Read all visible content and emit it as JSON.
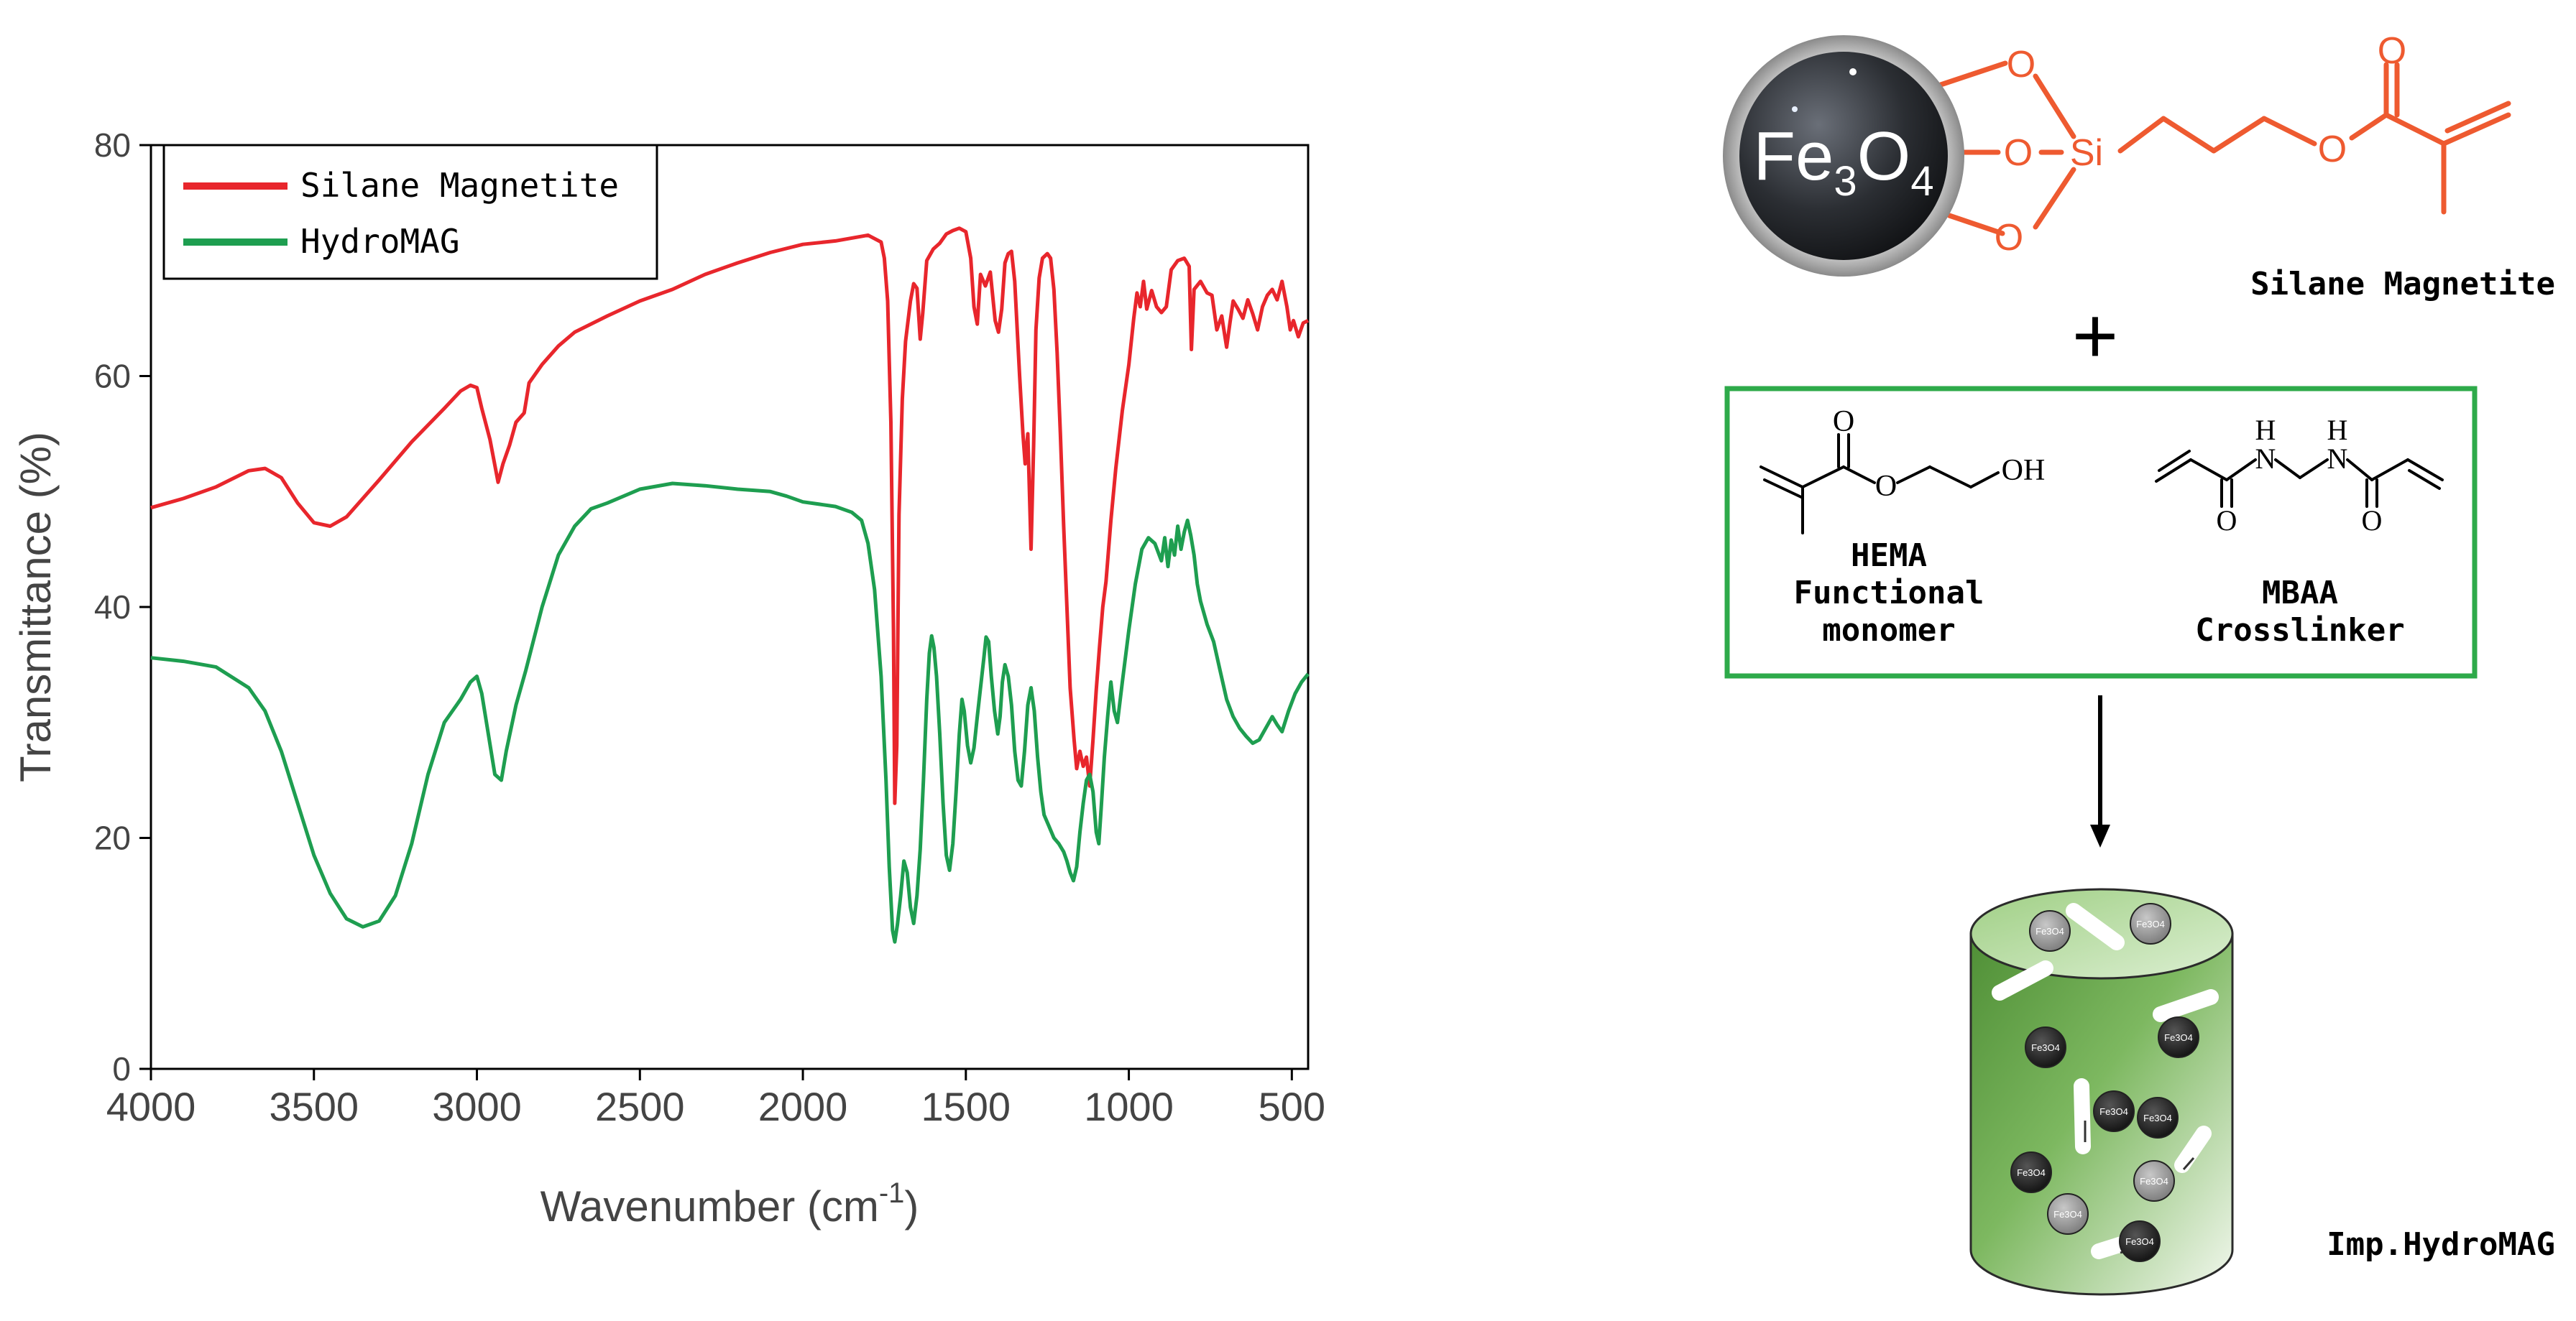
{
  "chart_data": {
    "type": "line",
    "title": "",
    "xlabel_main": "Wavenumber (cm",
    "xlabel_sup": "-1",
    "xlabel_end": ")",
    "ylabel": "Transmittance (%)",
    "xlim": [
      4000,
      450
    ],
    "ylim": [
      0,
      80
    ],
    "x_ticks": [
      "4000",
      "3500",
      "3000",
      "2500",
      "2000",
      "1500",
      "1000",
      "500"
    ],
    "y_ticks": [
      "0",
      "20",
      "40",
      "60",
      "80"
    ],
    "legend_position": "top-left",
    "grid": false,
    "series": [
      {
        "name": "Silane Magnetite",
        "color": "#e8262c",
        "points": [
          [
            4000,
            48.6
          ],
          [
            3900,
            49.4
          ],
          [
            3800,
            50.4
          ],
          [
            3700,
            51.8
          ],
          [
            3650,
            52.0
          ],
          [
            3600,
            51.2
          ],
          [
            3550,
            49.0
          ],
          [
            3500,
            47.3
          ],
          [
            3450,
            47.0
          ],
          [
            3400,
            47.8
          ],
          [
            3300,
            51.0
          ],
          [
            3200,
            54.3
          ],
          [
            3100,
            57.2
          ],
          [
            3050,
            58.7
          ],
          [
            3020,
            59.2
          ],
          [
            3000,
            59.0
          ],
          [
            2985,
            57.2
          ],
          [
            2960,
            54.5
          ],
          [
            2935,
            50.8
          ],
          [
            2920,
            52.4
          ],
          [
            2900,
            54.0
          ],
          [
            2880,
            56.0
          ],
          [
            2855,
            56.8
          ],
          [
            2840,
            59.4
          ],
          [
            2800,
            61.0
          ],
          [
            2750,
            62.6
          ],
          [
            2700,
            63.8
          ],
          [
            2600,
            65.2
          ],
          [
            2500,
            66.5
          ],
          [
            2400,
            67.5
          ],
          [
            2300,
            68.8
          ],
          [
            2200,
            69.8
          ],
          [
            2100,
            70.7
          ],
          [
            2000,
            71.4
          ],
          [
            1900,
            71.7
          ],
          [
            1800,
            72.2
          ],
          [
            1760,
            71.6
          ],
          [
            1750,
            70.2
          ],
          [
            1740,
            66.5
          ],
          [
            1730,
            56.0
          ],
          [
            1722,
            38.0
          ],
          [
            1718,
            23.0
          ],
          [
            1712,
            28.0
          ],
          [
            1705,
            48.0
          ],
          [
            1695,
            58.0
          ],
          [
            1685,
            63.0
          ],
          [
            1670,
            66.5
          ],
          [
            1660,
            68.0
          ],
          [
            1650,
            67.6
          ],
          [
            1640,
            63.2
          ],
          [
            1632,
            65.5
          ],
          [
            1620,
            70.0
          ],
          [
            1600,
            71.0
          ],
          [
            1580,
            71.5
          ],
          [
            1560,
            72.3
          ],
          [
            1540,
            72.6
          ],
          [
            1520,
            72.8
          ],
          [
            1500,
            72.5
          ],
          [
            1485,
            70.2
          ],
          [
            1475,
            66.0
          ],
          [
            1465,
            64.5
          ],
          [
            1455,
            68.8
          ],
          [
            1440,
            67.8
          ],
          [
            1425,
            69.0
          ],
          [
            1410,
            64.8
          ],
          [
            1400,
            63.8
          ],
          [
            1390,
            65.8
          ],
          [
            1380,
            69.8
          ],
          [
            1370,
            70.6
          ],
          [
            1360,
            70.8
          ],
          [
            1350,
            68.2
          ],
          [
            1335,
            60.0
          ],
          [
            1325,
            55.0
          ],
          [
            1318,
            52.4
          ],
          [
            1310,
            55.0
          ],
          [
            1300,
            45.0
          ],
          [
            1292,
            54.0
          ],
          [
            1285,
            64.0
          ],
          [
            1275,
            68.5
          ],
          [
            1265,
            70.2
          ],
          [
            1250,
            70.6
          ],
          [
            1240,
            70.2
          ],
          [
            1230,
            67.5
          ],
          [
            1220,
            62.0
          ],
          [
            1210,
            55.0
          ],
          [
            1200,
            47.0
          ],
          [
            1190,
            40.0
          ],
          [
            1180,
            33.0
          ],
          [
            1168,
            28.5
          ],
          [
            1160,
            26.0
          ],
          [
            1150,
            27.5
          ],
          [
            1140,
            26.2
          ],
          [
            1130,
            27.0
          ],
          [
            1120,
            24.5
          ],
          [
            1110,
            28.5
          ],
          [
            1100,
            32.8
          ],
          [
            1090,
            36.5
          ],
          [
            1080,
            40.0
          ],
          [
            1070,
            42.2
          ],
          [
            1055,
            47.5
          ],
          [
            1040,
            52.0
          ],
          [
            1020,
            57.0
          ],
          [
            1000,
            61.0
          ],
          [
            985,
            65.0
          ],
          [
            975,
            67.2
          ],
          [
            965,
            66.0
          ],
          [
            955,
            68.2
          ],
          [
            945,
            65.8
          ],
          [
            930,
            67.4
          ],
          [
            915,
            66.0
          ],
          [
            900,
            65.5
          ],
          [
            885,
            66.0
          ],
          [
            870,
            69.2
          ],
          [
            850,
            70.0
          ],
          [
            830,
            70.2
          ],
          [
            815,
            69.5
          ],
          [
            808,
            62.3
          ],
          [
            800,
            67.5
          ],
          [
            780,
            68.2
          ],
          [
            760,
            67.2
          ],
          [
            745,
            67.0
          ],
          [
            730,
            64.0
          ],
          [
            715,
            65.2
          ],
          [
            700,
            62.5
          ],
          [
            690,
            64.6
          ],
          [
            680,
            66.5
          ],
          [
            665,
            65.8
          ],
          [
            650,
            65.0
          ],
          [
            635,
            66.6
          ],
          [
            620,
            65.4
          ],
          [
            605,
            64.0
          ],
          [
            590,
            66.0
          ],
          [
            575,
            67.0
          ],
          [
            560,
            67.5
          ],
          [
            545,
            66.6
          ],
          [
            530,
            68.2
          ],
          [
            515,
            66.0
          ],
          [
            505,
            64.0
          ],
          [
            495,
            64.8
          ],
          [
            480,
            63.4
          ],
          [
            465,
            64.6
          ],
          [
            450,
            64.8
          ]
        ]
      },
      {
        "name": "HydroMAG",
        "color": "#1e9e50",
        "points": [
          [
            4000,
            35.6
          ],
          [
            3900,
            35.3
          ],
          [
            3800,
            34.8
          ],
          [
            3700,
            33.0
          ],
          [
            3650,
            31.0
          ],
          [
            3600,
            27.5
          ],
          [
            3550,
            23.0
          ],
          [
            3500,
            18.5
          ],
          [
            3450,
            15.2
          ],
          [
            3400,
            13.0
          ],
          [
            3350,
            12.3
          ],
          [
            3300,
            12.8
          ],
          [
            3250,
            15.0
          ],
          [
            3200,
            19.5
          ],
          [
            3150,
            25.5
          ],
          [
            3100,
            30.0
          ],
          [
            3050,
            32.0
          ],
          [
            3020,
            33.5
          ],
          [
            3000,
            34.0
          ],
          [
            2985,
            32.5
          ],
          [
            2965,
            29.0
          ],
          [
            2945,
            25.5
          ],
          [
            2925,
            25.0
          ],
          [
            2910,
            27.5
          ],
          [
            2880,
            31.5
          ],
          [
            2850,
            34.5
          ],
          [
            2800,
            40.0
          ],
          [
            2750,
            44.5
          ],
          [
            2700,
            47.0
          ],
          [
            2650,
            48.5
          ],
          [
            2600,
            49.0
          ],
          [
            2500,
            50.2
          ],
          [
            2400,
            50.7
          ],
          [
            2300,
            50.5
          ],
          [
            2200,
            50.2
          ],
          [
            2100,
            50.0
          ],
          [
            2050,
            49.6
          ],
          [
            2000,
            49.1
          ],
          [
            1950,
            48.9
          ],
          [
            1900,
            48.7
          ],
          [
            1850,
            48.2
          ],
          [
            1820,
            47.5
          ],
          [
            1800,
            45.5
          ],
          [
            1780,
            41.5
          ],
          [
            1760,
            34.0
          ],
          [
            1745,
            25.0
          ],
          [
            1735,
            17.5
          ],
          [
            1725,
            12.0
          ],
          [
            1718,
            11.0
          ],
          [
            1710,
            12.5
          ],
          [
            1700,
            15.0
          ],
          [
            1690,
            18.0
          ],
          [
            1680,
            17.0
          ],
          [
            1670,
            14.0
          ],
          [
            1660,
            12.6
          ],
          [
            1650,
            15.0
          ],
          [
            1640,
            19.0
          ],
          [
            1630,
            25.0
          ],
          [
            1620,
            32.0
          ],
          [
            1612,
            36.0
          ],
          [
            1605,
            37.5
          ],
          [
            1598,
            36.5
          ],
          [
            1590,
            34.0
          ],
          [
            1580,
            29.0
          ],
          [
            1570,
            23.0
          ],
          [
            1560,
            18.5
          ],
          [
            1550,
            17.2
          ],
          [
            1540,
            19.5
          ],
          [
            1530,
            24.0
          ],
          [
            1520,
            29.0
          ],
          [
            1512,
            32.0
          ],
          [
            1505,
            31.0
          ],
          [
            1495,
            28.0
          ],
          [
            1485,
            26.5
          ],
          [
            1475,
            27.8
          ],
          [
            1465,
            30.5
          ],
          [
            1455,
            33.0
          ],
          [
            1445,
            35.5
          ],
          [
            1438,
            37.4
          ],
          [
            1430,
            37.0
          ],
          [
            1422,
            34.0
          ],
          [
            1412,
            31.0
          ],
          [
            1402,
            29.0
          ],
          [
            1395,
            30.5
          ],
          [
            1388,
            33.5
          ],
          [
            1380,
            35.0
          ],
          [
            1370,
            34.0
          ],
          [
            1360,
            31.5
          ],
          [
            1350,
            27.5
          ],
          [
            1340,
            25.0
          ],
          [
            1330,
            24.5
          ],
          [
            1320,
            27.5
          ],
          [
            1310,
            31.5
          ],
          [
            1300,
            33.0
          ],
          [
            1290,
            31.0
          ],
          [
            1280,
            27.0
          ],
          [
            1270,
            24.0
          ],
          [
            1260,
            22.0
          ],
          [
            1245,
            21.0
          ],
          [
            1230,
            20.0
          ],
          [
            1215,
            19.5
          ],
          [
            1200,
            18.8
          ],
          [
            1190,
            18.0
          ],
          [
            1180,
            17.0
          ],
          [
            1170,
            16.3
          ],
          [
            1160,
            17.5
          ],
          [
            1150,
            20.5
          ],
          [
            1140,
            23.0
          ],
          [
            1130,
            25.0
          ],
          [
            1120,
            25.5
          ],
          [
            1110,
            24.0
          ],
          [
            1100,
            20.5
          ],
          [
            1092,
            19.5
          ],
          [
            1085,
            22.5
          ],
          [
            1075,
            27.0
          ],
          [
            1065,
            30.5
          ],
          [
            1055,
            33.5
          ],
          [
            1045,
            31.0
          ],
          [
            1035,
            30.0
          ],
          [
            1020,
            33.5
          ],
          [
            1000,
            38.0
          ],
          [
            980,
            42.0
          ],
          [
            960,
            45.0
          ],
          [
            940,
            46.0
          ],
          [
            920,
            45.5
          ],
          [
            900,
            44.0
          ],
          [
            890,
            46.0
          ],
          [
            880,
            43.5
          ],
          [
            870,
            45.8
          ],
          [
            860,
            44.5
          ],
          [
            850,
            47.0
          ],
          [
            840,
            45.0
          ],
          [
            830,
            46.5
          ],
          [
            820,
            47.5
          ],
          [
            810,
            46.2
          ],
          [
            800,
            44.5
          ],
          [
            790,
            42.0
          ],
          [
            780,
            40.5
          ],
          [
            760,
            38.5
          ],
          [
            740,
            37.0
          ],
          [
            720,
            34.5
          ],
          [
            700,
            32.0
          ],
          [
            680,
            30.5
          ],
          [
            660,
            29.5
          ],
          [
            640,
            28.8
          ],
          [
            620,
            28.2
          ],
          [
            600,
            28.5
          ],
          [
            580,
            29.5
          ],
          [
            560,
            30.5
          ],
          [
            545,
            29.8
          ],
          [
            530,
            29.2
          ],
          [
            510,
            31.0
          ],
          [
            490,
            32.5
          ],
          [
            470,
            33.5
          ],
          [
            450,
            34.2
          ]
        ]
      }
    ]
  },
  "scheme": {
    "core_text": "Fe",
    "core_sub1": "3",
    "core_mid": "O",
    "core_sub2": "4",
    "atom_O": "O",
    "atom_Si": "Si",
    "atom_OH": "OH",
    "atom_H": "H",
    "atom_N": "N",
    "silane_label": "Silane Magnetite",
    "plus": "+",
    "hema_name": "HEMA",
    "hema_role_line1": "Functional",
    "hema_role_line2": "monomer",
    "mbaa_name": "MBAA",
    "mbaa_role": "Crosslinker",
    "product_label": "Imp.HydroMAG",
    "particle_label_main": "Fe",
    "particle_label_sub1": "3",
    "particle_label_mid": "O",
    "particle_label_sub2": "4",
    "silane_color": "#ee5a30",
    "box_color": "#2eaa4a",
    "cylinder_color": "#6aa64a"
  }
}
